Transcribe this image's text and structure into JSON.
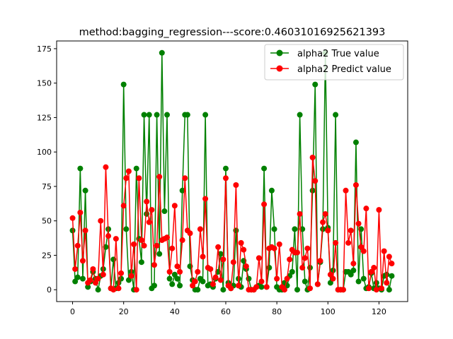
{
  "chart_data": {
    "type": "line",
    "title": "method:bagging_regression---score:0.46031016925621393",
    "xlabel": "",
    "ylabel": "",
    "xlim": [
      -6.25,
      131.25
    ],
    "ylim": [
      -8.6,
      180.6
    ],
    "xticks": [
      0,
      20,
      40,
      60,
      80,
      100,
      120
    ],
    "yticks": [
      0,
      25,
      50,
      75,
      100,
      125,
      150,
      175
    ],
    "grid": false,
    "legend_position": "top-right",
    "x": [
      0,
      1,
      2,
      3,
      4,
      5,
      6,
      7,
      8,
      9,
      10,
      11,
      12,
      13,
      14,
      15,
      16,
      17,
      18,
      19,
      20,
      21,
      22,
      23,
      24,
      25,
      26,
      27,
      28,
      29,
      30,
      31,
      32,
      33,
      34,
      35,
      36,
      37,
      38,
      39,
      40,
      41,
      42,
      43,
      44,
      45,
      46,
      47,
      48,
      49,
      50,
      51,
      52,
      53,
      54,
      55,
      56,
      57,
      58,
      59,
      60,
      61,
      62,
      63,
      64,
      65,
      66,
      67,
      68,
      69,
      70,
      71,
      72,
      73,
      74,
      75,
      76,
      77,
      78,
      79,
      80,
      81,
      82,
      83,
      84,
      85,
      86,
      87,
      88,
      89,
      90,
      91,
      92,
      93,
      94,
      95,
      96,
      97,
      98,
      99,
      100,
      101,
      102,
      103,
      104,
      105,
      106,
      107,
      108,
      109,
      110,
      111,
      112,
      113,
      114,
      115,
      116,
      117,
      118,
      119,
      120,
      121,
      122,
      123,
      124,
      125
    ],
    "series": [
      {
        "name": "alpha2 True value",
        "color": "#008000",
        "values": [
          43,
          6,
          9,
          88,
          8,
          72,
          2,
          6,
          13,
          8,
          0,
          10,
          15,
          31,
          44,
          1,
          22,
          1,
          5,
          8,
          149,
          44,
          7,
          13,
          0,
          88,
          37,
          20,
          127,
          55,
          127,
          1,
          3,
          127,
          26,
          172,
          57,
          127,
          8,
          4,
          11,
          8,
          3,
          72,
          127,
          127,
          17,
          7,
          0,
          0,
          8,
          6,
          127,
          3,
          4,
          2,
          8,
          13,
          26,
          0,
          88,
          5,
          1,
          3,
          43,
          8,
          2,
          21,
          15,
          8,
          0,
          0,
          2,
          3,
          2,
          88,
          2,
          16,
          72,
          44,
          2,
          0,
          0,
          5,
          3,
          10,
          13,
          44,
          0,
          127,
          44,
          6,
          0,
          16,
          72,
          149,
          4,
          20,
          44,
          172,
          45,
          5,
          14,
          127,
          0,
          0,
          0,
          13,
          13,
          11,
          14,
          107,
          6,
          44,
          8,
          1,
          2,
          12,
          1,
          5,
          1,
          0,
          10,
          11,
          0,
          10
        ]
      },
      {
        "name": "alpha2 Predict value",
        "color": "#ff0000",
        "values": [
          52,
          15,
          32,
          56,
          21,
          43,
          5,
          7,
          15,
          5,
          8,
          50,
          11,
          89,
          39,
          1,
          0,
          37,
          1,
          12,
          61,
          81,
          86,
          10,
          33,
          0,
          81,
          36,
          32,
          64,
          49,
          58,
          18,
          32,
          82,
          36,
          37,
          38,
          13,
          30,
          61,
          17,
          13,
          36,
          81,
          43,
          41,
          3,
          6,
          13,
          44,
          24,
          66,
          16,
          15,
          4,
          9,
          31,
          7,
          22,
          81,
          3,
          1,
          20,
          76,
          3,
          34,
          29,
          17,
          0,
          0,
          0,
          2,
          23,
          6,
          62,
          2,
          30,
          31,
          30,
          8,
          33,
          2,
          0,
          8,
          22,
          29,
          27,
          27,
          55,
          16,
          23,
          30,
          1,
          96,
          79,
          4,
          21,
          49,
          55,
          43,
          11,
          8,
          34,
          0,
          0,
          0,
          72,
          34,
          43,
          19,
          76,
          48,
          31,
          28,
          59,
          1,
          13,
          16,
          0,
          58,
          1,
          28,
          5,
          24,
          19
        ]
      }
    ]
  }
}
